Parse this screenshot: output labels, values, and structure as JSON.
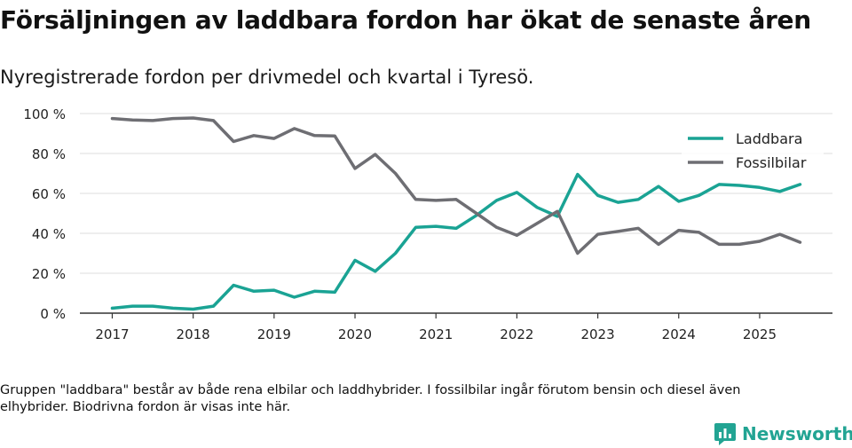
{
  "page": {
    "title": "Försäljningen av laddbara fordon har ökat de senaste åren",
    "subtitle": "Nyregistrerade fordon per drivmedel och kvartal i Tyresö.",
    "note": "Gruppen \"laddbara\" består av både rena elbilar och laddhybrider. I fossilbilar ingår förutom bensin och diesel även elhybrider. Biodrivna fordon är visas inte här.",
    "brand": "Newsworthy"
  },
  "chart_data": {
    "type": "line",
    "x": [
      2017.0,
      2017.25,
      2017.5,
      2017.75,
      2018.0,
      2018.25,
      2018.5,
      2018.75,
      2019.0,
      2019.25,
      2019.5,
      2019.75,
      2020.0,
      2020.25,
      2020.5,
      2020.75,
      2021.0,
      2021.25,
      2021.5,
      2021.75,
      2022.0,
      2022.25,
      2022.5,
      2022.75,
      2023.0,
      2023.25,
      2023.5,
      2023.75,
      2024.0,
      2024.25,
      2024.5,
      2024.75,
      2025.0,
      2025.25,
      2025.5
    ],
    "series": [
      {
        "name": "Laddbara",
        "color": "#1aa394",
        "values": [
          2.5,
          3.5,
          3.5,
          2.5,
          2,
          3.5,
          14,
          11,
          11.5,
          8,
          11,
          10.5,
          26.5,
          21,
          30,
          43,
          43.5,
          42.5,
          49,
          56.5,
          60.5,
          53,
          48.5,
          69.5,
          59,
          55.5,
          57,
          63.5,
          56,
          59,
          64.5,
          64,
          63,
          61,
          64.5
        ]
      },
      {
        "name": "Fossilbilar",
        "color": "#6e6e73",
        "values": [
          97.5,
          96.8,
          96.5,
          97.5,
          97.8,
          96.5,
          86,
          89,
          87.5,
          92.5,
          89,
          88.8,
          72.5,
          79.5,
          70,
          57,
          56.5,
          57,
          50,
          43,
          39,
          45,
          51,
          30,
          39.5,
          41,
          42.5,
          34.5,
          41.5,
          40.5,
          34.5,
          34.5,
          36,
          39.5,
          35.5
        ]
      }
    ],
    "ylim": [
      0,
      100
    ],
    "yticks": [
      0,
      20,
      40,
      60,
      80,
      100
    ],
    "ytick_labels": [
      "0 %",
      "20 %",
      "40 %",
      "60 %",
      "80 %",
      "100 %"
    ],
    "xticks": [
      2017,
      2018,
      2019,
      2020,
      2021,
      2022,
      2023,
      2024,
      2025
    ],
    "xtick_labels": [
      "2017",
      "2018",
      "2019",
      "2020",
      "2021",
      "2022",
      "2023",
      "2024",
      "2025"
    ],
    "xlabel": "",
    "ylabel": "",
    "grid": true,
    "legend_position": "top-right"
  }
}
